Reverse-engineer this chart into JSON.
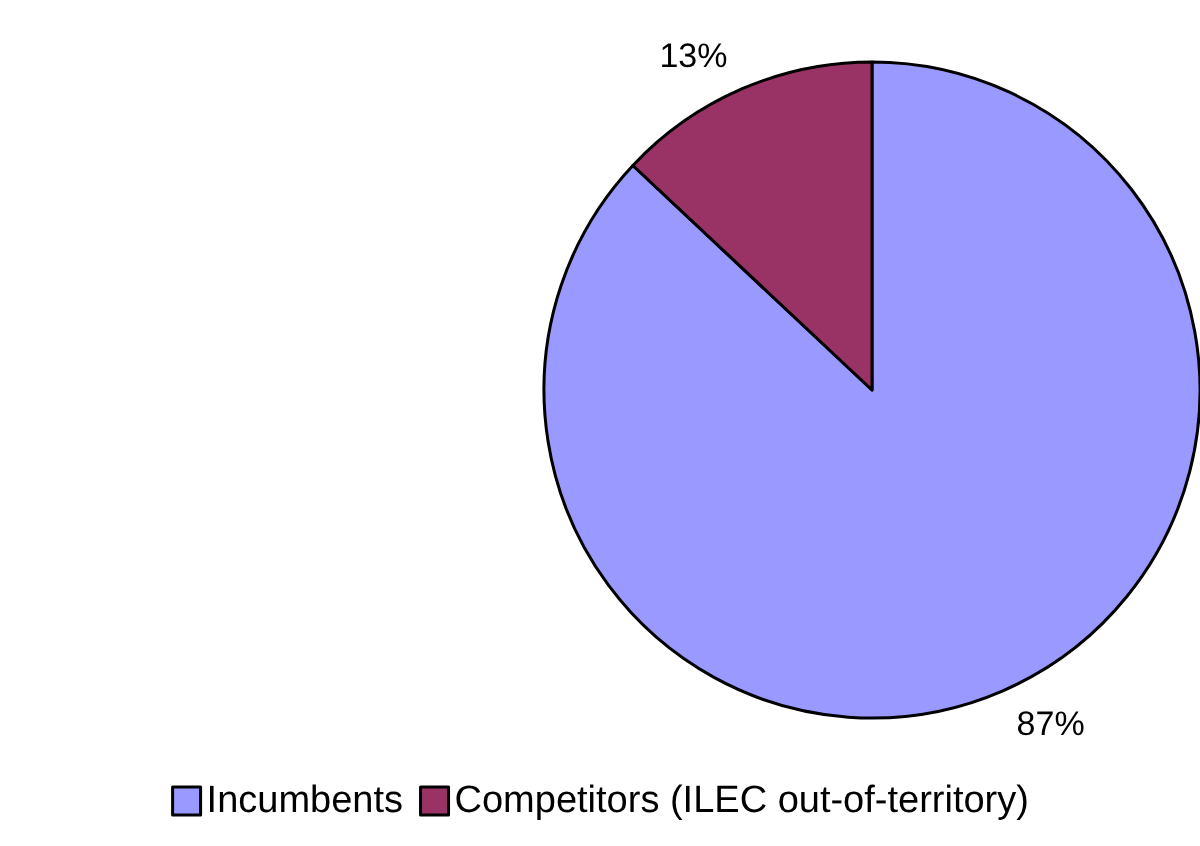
{
  "chart_data": {
    "type": "pie",
    "categories": [
      "Incumbents",
      "Competitors (ILEC out-of-territory)"
    ],
    "values": [
      87,
      13
    ],
    "colors": [
      "#9999ff",
      "#993366"
    ],
    "value_labels": [
      "87%",
      "13%"
    ],
    "legend": "bottom"
  }
}
